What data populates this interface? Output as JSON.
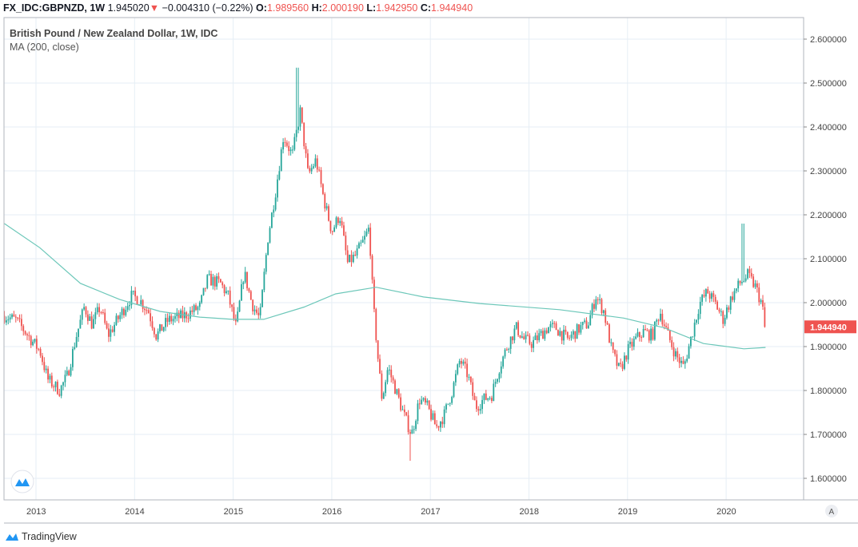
{
  "header": {
    "symbol": "FX_IDC:GBPNZD, 1W",
    "last": "1.945020",
    "direction_icon": "triangle-down",
    "change": "−0.004310 (−0.22%)",
    "o_label": "O:",
    "o": "1.989560",
    "h_label": "H:",
    "h": "2.000190",
    "l_label": "L:",
    "l": "1.942950",
    "c_label": "C:",
    "c": "1.944940"
  },
  "legend": {
    "title": "British Pound / New Zealand Dollar, 1W, IDC",
    "indicator": "MA (200, close)"
  },
  "price_tag": "1.944940",
  "auto_scale_label": "A",
  "brand": "TradingView",
  "colors": {
    "up": "#26a69a",
    "down": "#ef5350",
    "ma": "#6cc7b9",
    "grid": "#e6eef5"
  },
  "chart_data": {
    "type": "candlestick",
    "title": "British Pound / New Zealand Dollar, 1W, IDC",
    "ylim": [
      1.53,
      2.64
    ],
    "xlim": [
      2012.67,
      2020.8
    ],
    "y_ticks": [
      "1.600000",
      "1.700000",
      "1.800000",
      "1.900000",
      "2.000000",
      "2.100000",
      "2.200000",
      "2.300000",
      "2.400000",
      "2.500000",
      "2.600000"
    ],
    "x_ticks": [
      "2013",
      "2014",
      "2015",
      "2016",
      "2017",
      "2018",
      "2019",
      "2020"
    ],
    "grid": true,
    "close_path": [
      [
        2012.68,
        1.97
      ],
      [
        2012.8,
        1.96
      ],
      [
        2012.92,
        1.925
      ],
      [
        2013.04,
        1.89
      ],
      [
        2013.12,
        1.825
      ],
      [
        2013.24,
        1.8
      ],
      [
        2013.32,
        1.835
      ],
      [
        2013.41,
        1.925
      ],
      [
        2013.49,
        1.99
      ],
      [
        2013.57,
        1.95
      ],
      [
        2013.65,
        1.99
      ],
      [
        2013.73,
        1.925
      ],
      [
        2013.85,
        1.97
      ],
      [
        2013.97,
        2.015
      ],
      [
        2014.05,
        2.007
      ],
      [
        2014.14,
        1.98
      ],
      [
        2014.22,
        1.925
      ],
      [
        2014.34,
        1.96
      ],
      [
        2014.5,
        1.97
      ],
      [
        2014.66,
        1.99
      ],
      [
        2014.74,
        2.053
      ],
      [
        2014.87,
        2.044
      ],
      [
        2014.95,
        2.015
      ],
      [
        2015.03,
        1.943
      ],
      [
        2015.11,
        2.07
      ],
      [
        2015.19,
        1.998
      ],
      [
        2015.27,
        1.962
      ],
      [
        2015.35,
        2.144
      ],
      [
        2015.43,
        2.253
      ],
      [
        2015.51,
        2.38
      ],
      [
        2015.6,
        2.335
      ],
      [
        2015.68,
        2.435
      ],
      [
        2015.76,
        2.29
      ],
      [
        2015.84,
        2.325
      ],
      [
        2015.92,
        2.235
      ],
      [
        2016.0,
        2.162
      ],
      [
        2016.08,
        2.2
      ],
      [
        2016.16,
        2.09
      ],
      [
        2016.24,
        2.107
      ],
      [
        2016.33,
        2.144
      ],
      [
        2016.38,
        2.171
      ],
      [
        2016.42,
        1.998
      ],
      [
        2016.47,
        1.87
      ],
      [
        2016.51,
        1.78
      ],
      [
        2016.57,
        1.853
      ],
      [
        2016.65,
        1.8
      ],
      [
        2016.73,
        1.745
      ],
      [
        2016.81,
        1.7
      ],
      [
        2016.89,
        1.78
      ],
      [
        2016.97,
        1.762
      ],
      [
        2017.06,
        1.716
      ],
      [
        2017.14,
        1.744
      ],
      [
        2017.22,
        1.798
      ],
      [
        2017.3,
        1.87
      ],
      [
        2017.38,
        1.835
      ],
      [
        2017.46,
        1.762
      ],
      [
        2017.54,
        1.78
      ],
      [
        2017.62,
        1.789
      ],
      [
        2017.7,
        1.853
      ],
      [
        2017.79,
        1.907
      ],
      [
        2017.87,
        1.943
      ],
      [
        2017.95,
        1.916
      ],
      [
        2018.03,
        1.907
      ],
      [
        2018.11,
        1.925
      ],
      [
        2018.19,
        1.943
      ],
      [
        2018.27,
        1.943
      ],
      [
        2018.39,
        1.916
      ],
      [
        2018.52,
        1.943
      ],
      [
        2018.6,
        1.952
      ],
      [
        2018.68,
        2.015
      ],
      [
        2018.76,
        1.98
      ],
      [
        2018.84,
        1.89
      ],
      [
        2018.92,
        1.844
      ],
      [
        2019.0,
        1.89
      ],
      [
        2019.08,
        1.916
      ],
      [
        2019.16,
        1.934
      ],
      [
        2019.25,
        1.925
      ],
      [
        2019.33,
        1.98
      ],
      [
        2019.41,
        1.925
      ],
      [
        2019.49,
        1.88
      ],
      [
        2019.57,
        1.853
      ],
      [
        2019.65,
        1.925
      ],
      [
        2019.73,
        1.998
      ],
      [
        2019.81,
        2.025
      ],
      [
        2019.89,
        1.998
      ],
      [
        2019.97,
        1.962
      ],
      [
        2020.06,
        2.015
      ],
      [
        2020.14,
        2.044
      ],
      [
        2020.22,
        2.062
      ],
      [
        2020.3,
        2.035
      ],
      [
        2020.36,
        1.998
      ],
      [
        2020.4,
        1.945
      ]
    ],
    "notable_wicks": [
      [
        2015.65,
        "high",
        2.535
      ],
      [
        2016.8,
        "low",
        1.64
      ],
      [
        2020.17,
        "high",
        2.18
      ]
    ],
    "last_candle": {
      "open": 1.98956,
      "high": 2.00019,
      "low": 1.94295,
      "close": 1.94494
    },
    "ma_200": [
      [
        2012.68,
        2.18
      ],
      [
        2013.04,
        2.125
      ],
      [
        2013.45,
        2.044
      ],
      [
        2013.85,
        2.007
      ],
      [
        2014.26,
        1.98
      ],
      [
        2014.66,
        1.967
      ],
      [
        2014.99,
        1.962
      ],
      [
        2015.31,
        1.962
      ],
      [
        2015.72,
        1.99
      ],
      [
        2016.04,
        2.02
      ],
      [
        2016.45,
        2.035
      ],
      [
        2016.93,
        2.013
      ],
      [
        2017.5,
        1.998
      ],
      [
        2018.31,
        1.984
      ],
      [
        2018.96,
        1.965
      ],
      [
        2019.37,
        1.943
      ],
      [
        2019.77,
        1.907
      ],
      [
        2020.18,
        1.895
      ],
      [
        2020.4,
        1.898
      ]
    ]
  }
}
